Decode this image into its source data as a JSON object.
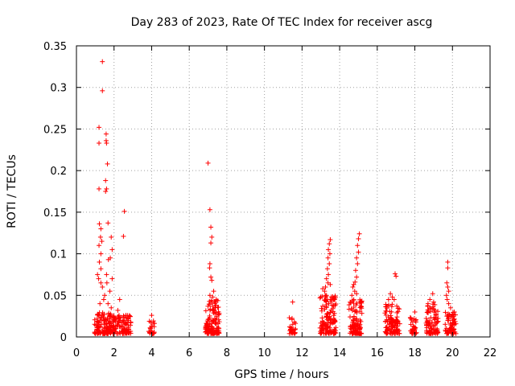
{
  "chart_data": {
    "type": "scatter",
    "title": "Day 283 of 2023, Rate Of TEC Index for receiver ascg",
    "xlabel": "GPS time / hours",
    "ylabel": "ROTI / TECUs",
    "xlim": [
      0,
      22
    ],
    "ylim": [
      0,
      0.35
    ],
    "x_ticks": [
      0,
      2,
      4,
      6,
      8,
      10,
      12,
      14,
      16,
      18,
      20,
      22
    ],
    "y_ticks": [
      0,
      0.05,
      0.1,
      0.15,
      0.2,
      0.25,
      0.3,
      0.35
    ],
    "x_tick_labels": [
      "0",
      "2",
      "4",
      "6",
      "8",
      "10",
      "12",
      "14",
      "16",
      "18",
      "20",
      "22"
    ],
    "y_tick_labels": [
      "0",
      "0.05",
      "0.1",
      "0.15",
      "0.2",
      "0.25",
      "0.3",
      "0.35"
    ],
    "grid": true,
    "marker": "+",
    "marker_color": "#ff0000",
    "clusters": [
      {
        "x_range": [
          0.95,
          2.0
        ],
        "y_range": [
          0.004,
          0.03
        ],
        "count": 140
      },
      {
        "x_range": [
          2.0,
          2.9
        ],
        "y_range": [
          0.004,
          0.028
        ],
        "count": 90
      },
      {
        "x_range": [
          3.85,
          4.15
        ],
        "y_range": [
          0.004,
          0.02
        ],
        "count": 24
      },
      {
        "x_range": [
          6.85,
          7.6
        ],
        "y_range": [
          0.004,
          0.045
        ],
        "count": 130
      },
      {
        "x_range": [
          11.3,
          11.65
        ],
        "y_range": [
          0.004,
          0.025
        ],
        "count": 30
      },
      {
        "x_range": [
          12.95,
          13.8
        ],
        "y_range": [
          0.004,
          0.05
        ],
        "count": 140
      },
      {
        "x_range": [
          14.5,
          15.2
        ],
        "y_range": [
          0.004,
          0.045
        ],
        "count": 110
      },
      {
        "x_range": [
          16.4,
          17.2
        ],
        "y_range": [
          0.004,
          0.04
        ],
        "count": 110
      },
      {
        "x_range": [
          17.75,
          18.1
        ],
        "y_range": [
          0.004,
          0.025
        ],
        "count": 30
      },
      {
        "x_range": [
          18.6,
          19.25
        ],
        "y_range": [
          0.004,
          0.04
        ],
        "count": 90
      },
      {
        "x_range": [
          19.6,
          20.2
        ],
        "y_range": [
          0.004,
          0.03
        ],
        "count": 60
      }
    ],
    "points": [
      [
        1.38,
        0.331
      ],
      [
        1.38,
        0.296
      ],
      [
        1.2,
        0.252
      ],
      [
        1.2,
        0.233
      ],
      [
        1.58,
        0.244
      ],
      [
        1.58,
        0.236
      ],
      [
        1.6,
        0.233
      ],
      [
        1.65,
        0.208
      ],
      [
        1.55,
        0.188
      ],
      [
        1.55,
        0.175
      ],
      [
        1.6,
        0.178
      ],
      [
        1.2,
        0.178
      ],
      [
        1.68,
        0.137
      ],
      [
        1.22,
        0.136
      ],
      [
        1.3,
        0.13
      ],
      [
        1.28,
        0.12
      ],
      [
        1.35,
        0.115
      ],
      [
        1.2,
        0.11
      ],
      [
        1.3,
        0.1
      ],
      [
        1.85,
        0.12
      ],
      [
        1.9,
        0.105
      ],
      [
        1.8,
        0.095
      ],
      [
        1.7,
        0.093
      ],
      [
        1.22,
        0.09
      ],
      [
        1.3,
        0.082
      ],
      [
        1.12,
        0.075
      ],
      [
        1.18,
        0.07
      ],
      [
        1.3,
        0.065
      ],
      [
        1.6,
        0.075
      ],
      [
        1.62,
        0.065
      ],
      [
        1.9,
        0.07
      ],
      [
        1.78,
        0.055
      ],
      [
        1.38,
        0.06
      ],
      [
        1.5,
        0.05
      ],
      [
        1.45,
        0.045
      ],
      [
        1.25,
        0.04
      ],
      [
        1.68,
        0.04
      ],
      [
        1.85,
        0.035
      ],
      [
        2.55,
        0.151
      ],
      [
        2.5,
        0.121
      ],
      [
        2.3,
        0.045
      ],
      [
        2.2,
        0.032
      ],
      [
        4.0,
        0.026
      ],
      [
        7.0,
        0.209
      ],
      [
        7.1,
        0.153
      ],
      [
        7.15,
        0.132
      ],
      [
        7.2,
        0.12
      ],
      [
        7.15,
        0.113
      ],
      [
        7.1,
        0.088
      ],
      [
        7.08,
        0.083
      ],
      [
        7.15,
        0.072
      ],
      [
        7.2,
        0.068
      ],
      [
        7.3,
        0.055
      ],
      [
        7.1,
        0.05
      ],
      [
        7.25,
        0.048
      ],
      [
        11.5,
        0.042
      ],
      [
        13.5,
        0.117
      ],
      [
        13.45,
        0.112
      ],
      [
        13.4,
        0.105
      ],
      [
        13.48,
        0.1
      ],
      [
        13.38,
        0.095
      ],
      [
        13.45,
        0.088
      ],
      [
        13.35,
        0.082
      ],
      [
        13.4,
        0.075
      ],
      [
        13.3,
        0.07
      ],
      [
        13.38,
        0.065
      ],
      [
        13.25,
        0.06
      ],
      [
        13.5,
        0.063
      ],
      [
        13.2,
        0.055
      ],
      [
        13.1,
        0.058
      ],
      [
        13.3,
        0.05
      ],
      [
        15.05,
        0.124
      ],
      [
        15.0,
        0.118
      ],
      [
        14.95,
        0.11
      ],
      [
        15.0,
        0.102
      ],
      [
        14.9,
        0.095
      ],
      [
        14.95,
        0.088
      ],
      [
        14.85,
        0.08
      ],
      [
        14.9,
        0.072
      ],
      [
        14.82,
        0.066
      ],
      [
        14.75,
        0.063
      ],
      [
        14.7,
        0.06
      ],
      [
        14.8,
        0.055
      ],
      [
        14.65,
        0.05
      ],
      [
        14.9,
        0.052
      ],
      [
        16.95,
        0.076
      ],
      [
        17.0,
        0.073
      ],
      [
        16.7,
        0.052
      ],
      [
        16.8,
        0.048
      ],
      [
        16.9,
        0.045
      ],
      [
        16.6,
        0.045
      ],
      [
        18.0,
        0.03
      ],
      [
        18.95,
        0.052
      ],
      [
        18.8,
        0.045
      ],
      [
        19.0,
        0.042
      ],
      [
        18.7,
        0.04
      ],
      [
        19.75,
        0.09
      ],
      [
        19.75,
        0.083
      ],
      [
        19.7,
        0.065
      ],
      [
        19.75,
        0.06
      ],
      [
        19.8,
        0.055
      ],
      [
        19.68,
        0.05
      ],
      [
        19.72,
        0.045
      ],
      [
        19.8,
        0.04
      ],
      [
        19.9,
        0.035
      ],
      [
        20.1,
        0.03
      ],
      [
        20.05,
        0.025
      ],
      [
        20.0,
        0.02
      ],
      [
        20.1,
        0.015
      ]
    ]
  }
}
